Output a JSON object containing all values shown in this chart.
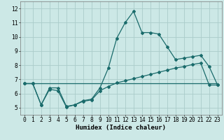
{
  "xlabel": "Humidex (Indice chaleur)",
  "bg_color": "#cce8e6",
  "grid_color": "#aaccca",
  "line_color": "#1a6b6b",
  "xlim": [
    -0.5,
    23.5
  ],
  "ylim": [
    4.5,
    12.5
  ],
  "xticks": [
    0,
    1,
    2,
    3,
    4,
    5,
    6,
    7,
    8,
    9,
    10,
    11,
    12,
    13,
    14,
    15,
    16,
    17,
    18,
    19,
    20,
    21,
    22,
    23
  ],
  "yticks": [
    5,
    6,
    7,
    8,
    9,
    10,
    11,
    12
  ],
  "line1_x": [
    0,
    1,
    2,
    3,
    4,
    5,
    6,
    7,
    8,
    9,
    10,
    11,
    12,
    13,
    14,
    15,
    16,
    17,
    18,
    19,
    20,
    21,
    22,
    23
  ],
  "line1_y": [
    6.7,
    6.7,
    5.2,
    6.4,
    6.4,
    5.1,
    5.2,
    5.5,
    5.6,
    6.4,
    7.8,
    9.9,
    11.0,
    11.8,
    10.3,
    10.3,
    10.2,
    9.3,
    8.4,
    8.5,
    8.6,
    8.7,
    7.9,
    6.6
  ],
  "line2_x": [
    0,
    23
  ],
  "line2_y": [
    6.7,
    6.7
  ],
  "line3_x": [
    0,
    1,
    2,
    3,
    4,
    5,
    6,
    7,
    8,
    9,
    10,
    11,
    12,
    13,
    14,
    15,
    16,
    17,
    18,
    19,
    20,
    21,
    22,
    23
  ],
  "line3_y": [
    6.7,
    6.7,
    5.2,
    6.3,
    6.2,
    5.05,
    5.2,
    5.45,
    5.55,
    6.2,
    6.5,
    6.75,
    6.9,
    7.05,
    7.2,
    7.35,
    7.5,
    7.65,
    7.8,
    7.9,
    8.05,
    8.15,
    6.6,
    6.6
  ],
  "marker_size": 2.0,
  "linewidth": 0.9,
  "font_size_label": 6.5,
  "font_size_tick": 5.8
}
